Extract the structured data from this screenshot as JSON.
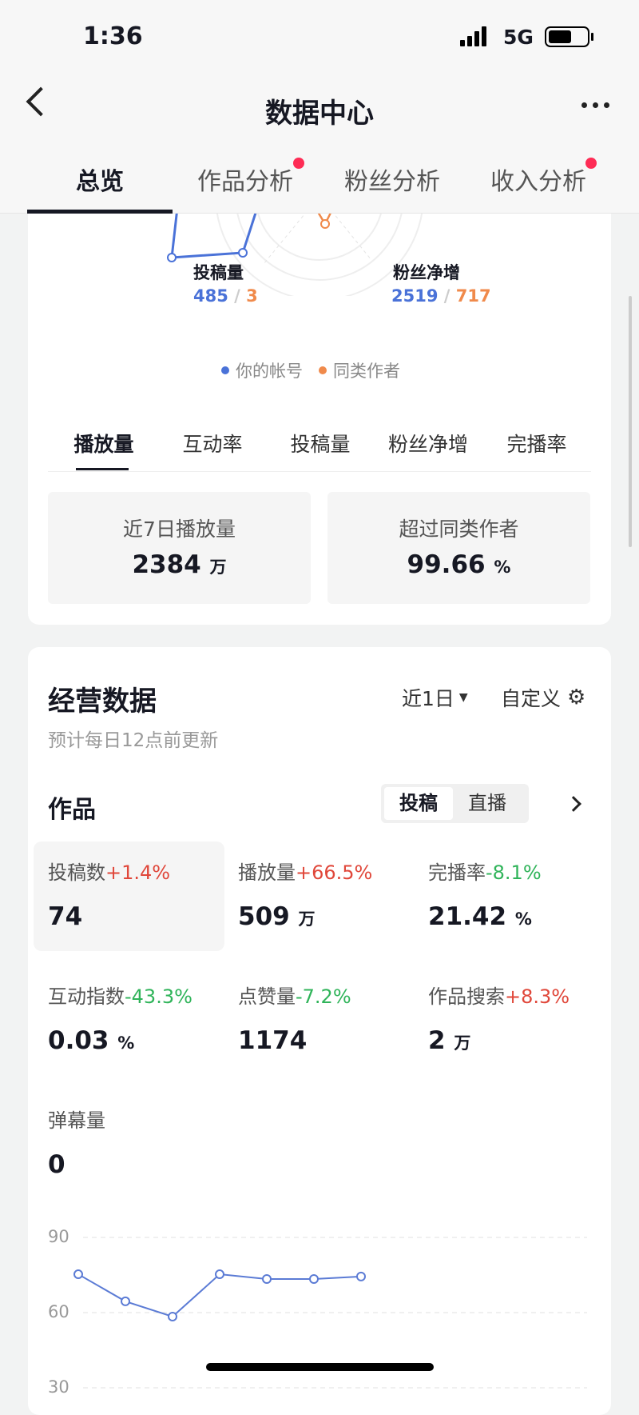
{
  "status": {
    "time": "1:36",
    "network": "5G",
    "battery_level": 0.6
  },
  "nav": {
    "title": "数据中心",
    "tabs": [
      {
        "label": "总览",
        "active": true
      },
      {
        "label": "作品分析",
        "dot": true
      },
      {
        "label": "粉丝分析"
      },
      {
        "label": "收入分析",
        "dot": true
      }
    ]
  },
  "radar": {
    "labels": [
      {
        "name": "投稿量",
        "mine": "485",
        "peer": "3"
      },
      {
        "name": "粉丝净增",
        "mine": "2519",
        "peer": "717"
      }
    ],
    "legend": [
      "你的帐号",
      "同类作者"
    ],
    "colors": {
      "mine": "#4a72d8",
      "peer": "#f08a4b"
    }
  },
  "metric_tabs": [
    "播放量",
    "互动率",
    "投稿量",
    "粉丝净增",
    "完播率"
  ],
  "summary": [
    {
      "label": "近7日播放量",
      "value": "2384",
      "unit": "万"
    },
    {
      "label": "超过同类作者",
      "value": "99.66",
      "unit": "%"
    }
  ],
  "ops": {
    "title": "经营数据",
    "range": "近1日",
    "custom": "自定义",
    "note": "预计每日12点前更新",
    "section": "作品",
    "seg": [
      "投稿",
      "直播"
    ],
    "metrics": [
      {
        "label": "投稿数",
        "change": "+1.4%",
        "dir": "up",
        "value": "74",
        "unit": ""
      },
      {
        "label": "播放量",
        "change": "+66.5%",
        "dir": "up",
        "value": "509",
        "unit": "万"
      },
      {
        "label": "完播率",
        "change": "-8.1%",
        "dir": "dn",
        "value": "21.42",
        "unit": "%"
      },
      {
        "label": "互动指数",
        "change": "-43.3%",
        "dir": "dn",
        "value": "0.03",
        "unit": "%"
      },
      {
        "label": "点赞量",
        "change": "-7.2%",
        "dir": "dn",
        "value": "1174",
        "unit": ""
      },
      {
        "label": "作品搜索",
        "change": "+8.3%",
        "dir": "up",
        "value": "2",
        "unit": "万"
      },
      {
        "label": "弹幕量",
        "change": "",
        "dir": "",
        "value": "0",
        "unit": ""
      }
    ]
  },
  "chart_data": {
    "type": "line",
    "yticks": [
      "90",
      "60",
      "30"
    ],
    "series": [
      {
        "values": [
          75.3,
          64.5,
          58.4,
          75.3,
          73.4,
          73.4,
          74.4
        ]
      }
    ],
    "color": "#5b7bd5",
    "grid": "dashed"
  }
}
